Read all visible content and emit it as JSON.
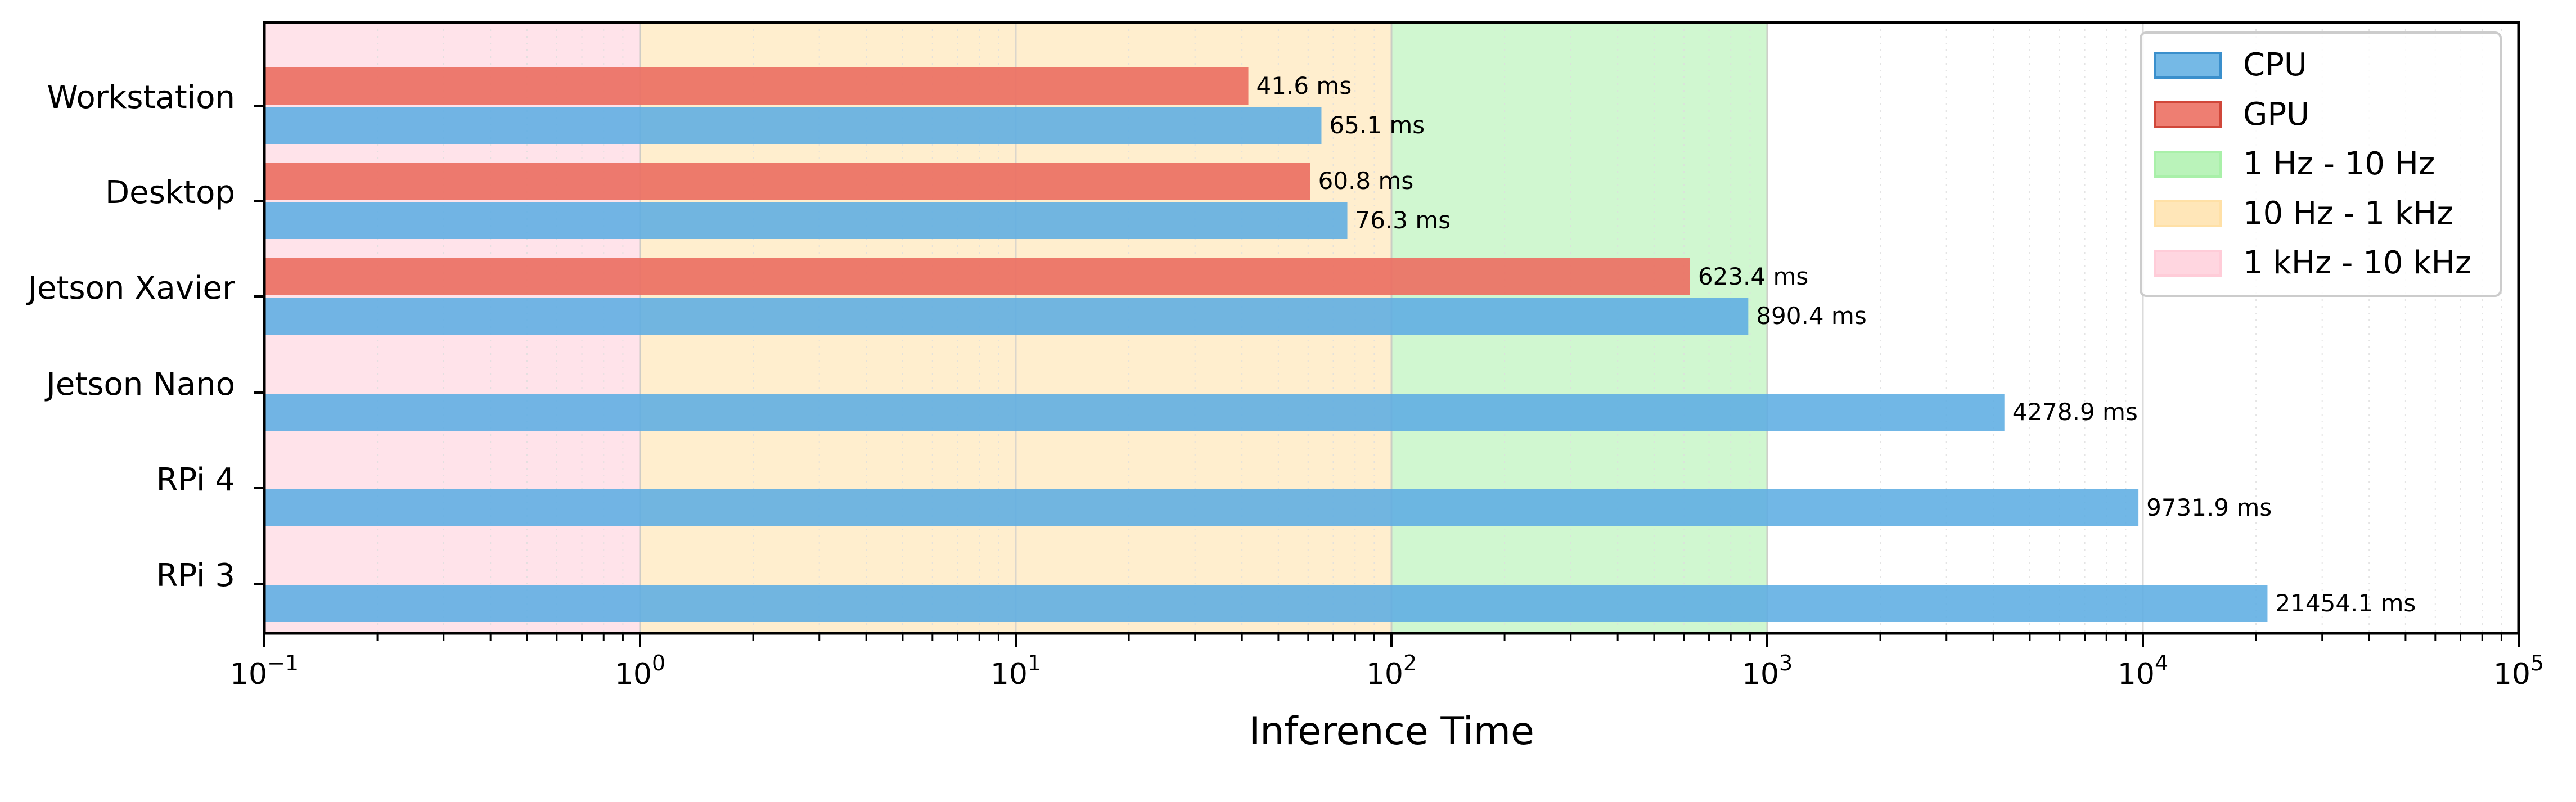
{
  "chart_data": {
    "type": "bar",
    "orientation": "horizontal",
    "xscale": "log",
    "xlim": [
      0.1,
      100000
    ],
    "xlabel": "Inference Time",
    "ylabel": "",
    "title": "",
    "categories": [
      "Workstation",
      "Desktop",
      "Jetson Xavier",
      "Jetson Nano",
      "RPi 4",
      "RPi 3"
    ],
    "series": [
      {
        "name": "CPU",
        "color": "#5dade2",
        "values": [
          65.1,
          76.3,
          890.4,
          4278.9,
          9731.9,
          21454.1
        ],
        "labels": [
          "65.1 ms",
          "76.3 ms",
          "890.4 ms",
          "4278.9 ms",
          "9731.9 ms",
          "21454.1 ms"
        ]
      },
      {
        "name": "GPU",
        "color": "#ec7063",
        "values": [
          41.6,
          60.8,
          623.4,
          null,
          null,
          null
        ],
        "labels": [
          "41.6 ms",
          "60.8 ms",
          "623.4 ms",
          null,
          null,
          null
        ]
      }
    ],
    "bands": [
      {
        "name": "1 Hz - 10 Hz",
        "from": 100,
        "to": 1000,
        "color": "#a9f0a9"
      },
      {
        "name": "10 Hz - 1 kHz",
        "from": 1,
        "to": 100,
        "color": "#ffe0a6"
      },
      {
        "name": "1 kHz - 10 kHz",
        "from": 0.1,
        "to": 1,
        "color": "#ffccd8"
      }
    ],
    "x_ticks": [
      {
        "base": "10",
        "exp": "−1",
        "value": 0.1
      },
      {
        "base": "10",
        "exp": "0",
        "value": 1
      },
      {
        "base": "10",
        "exp": "1",
        "value": 10
      },
      {
        "base": "10",
        "exp": "2",
        "value": 100
      },
      {
        "base": "10",
        "exp": "3",
        "value": 1000
      },
      {
        "base": "10",
        "exp": "4",
        "value": 10000
      },
      {
        "base": "10",
        "exp": "5",
        "value": 100000
      }
    ],
    "legend": {
      "position": "top-right",
      "entries": [
        "CPU",
        "GPU",
        "1 Hz - 10 Hz",
        "10 Hz - 1 kHz",
        "1 kHz - 10 kHz"
      ]
    },
    "grid": true
  }
}
